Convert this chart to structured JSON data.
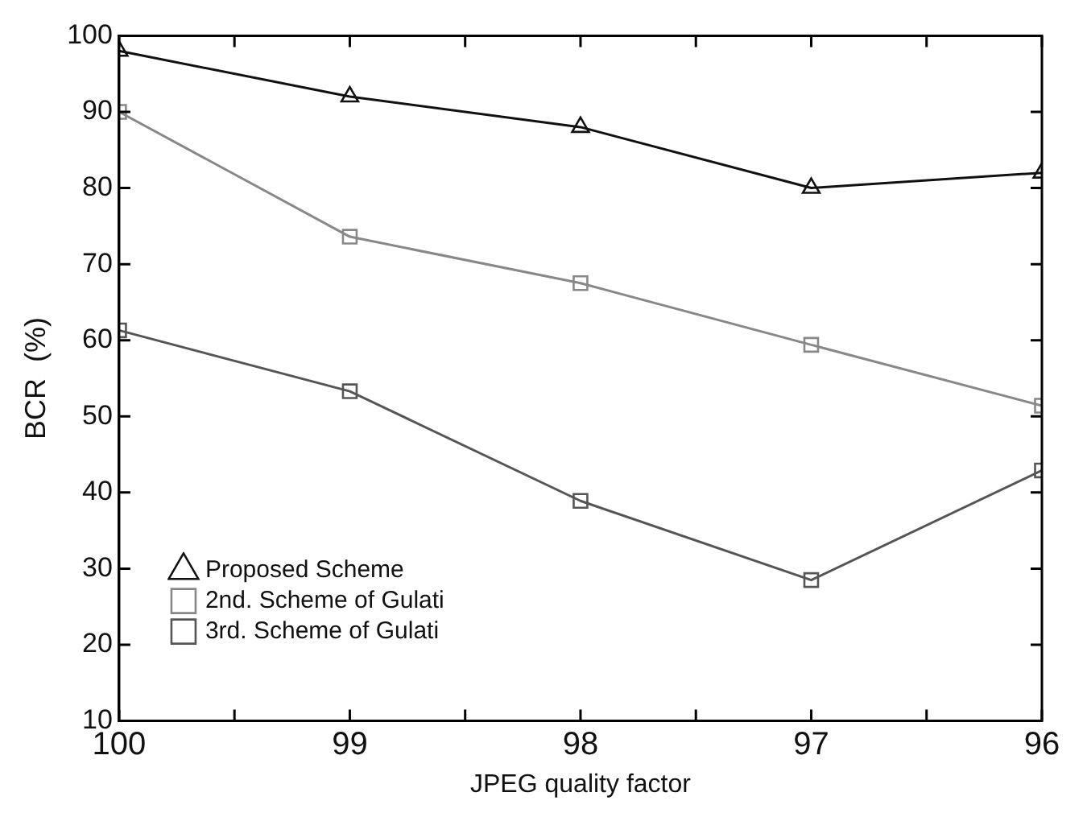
{
  "chart_data": {
    "type": "line",
    "xlabel": "JPEG quality factor",
    "ylabel": "BCR  (%)",
    "x": [
      100,
      99,
      98,
      97,
      96
    ],
    "xlim": [
      100,
      96
    ],
    "xticks": [
      100,
      {
        "value": 99.5,
        "label": null
      },
      99,
      {
        "value": 98.5,
        "label": null
      },
      98,
      {
        "value": 97.5,
        "label": null
      },
      97,
      {
        "value": 96.5,
        "label": null
      },
      96
    ],
    "ylim": [
      10,
      100
    ],
    "yticks": [
      10,
      20,
      30,
      40,
      50,
      60,
      70,
      80,
      90,
      100
    ],
    "grid": false,
    "legend": "bottom left",
    "line_style": "solid",
    "series": [
      {
        "name": "Proposed Scheme",
        "color": "#111111",
        "marker": "triangle",
        "values": [
          98,
          92,
          88,
          80,
          82
        ]
      },
      {
        "name": "2nd. Scheme of Gulati",
        "color": "#888888",
        "marker": "square",
        "values": [
          90,
          73.6,
          67.5,
          59.4,
          51.4
        ]
      },
      {
        "name": "3rd. Scheme of Gulati",
        "color": "#555555",
        "marker": "square",
        "values": [
          61.3,
          53.3,
          38.9,
          28.5,
          42.9
        ]
      }
    ]
  }
}
